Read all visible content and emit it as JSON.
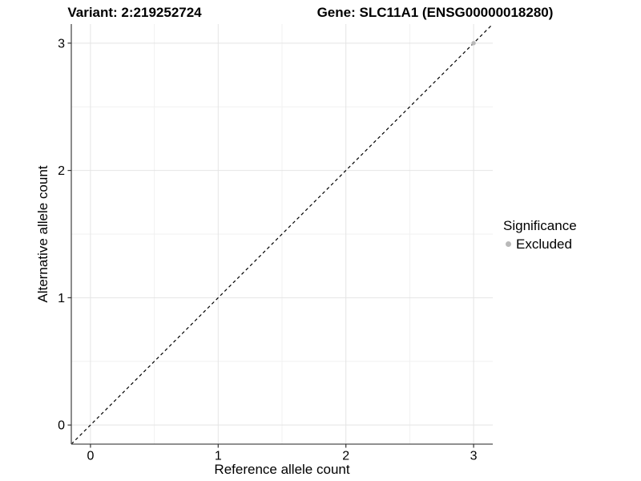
{
  "chart_data": {
    "type": "scatter",
    "title_left": "Variant: 2:219252724",
    "title_right": "Gene: SLC11A1 (ENSG00000018280)",
    "xlabel": "Reference allele count",
    "ylabel": "Alternative allele count",
    "xlim": [
      -0.15,
      3.15
    ],
    "ylim": [
      -0.15,
      3.15
    ],
    "xticks": [
      0,
      1,
      2,
      3
    ],
    "yticks": [
      0,
      1,
      2,
      3
    ],
    "xminor": [
      0.5,
      1.5,
      2.5
    ],
    "yminor": [
      0.5,
      1.5,
      2.5
    ],
    "grid": "major+minor",
    "reference_line": {
      "equation": "y = x",
      "style": "dashed",
      "color": "#000000"
    },
    "series": [
      {
        "name": "Excluded",
        "color": "#b9b9b9",
        "points": [
          [
            3,
            3
          ]
        ]
      }
    ],
    "legend": {
      "title": "Significance",
      "position": "right",
      "items": [
        {
          "label": "Excluded",
          "color": "#b9b9b9"
        }
      ]
    },
    "colors": {
      "panel_background": "#ffffff",
      "grid_major": "#e4e4e4",
      "grid_minor": "#f1f1f1",
      "axis_line": "#4d4d4d",
      "tick_mark": "#333333",
      "text": "#000000"
    }
  }
}
